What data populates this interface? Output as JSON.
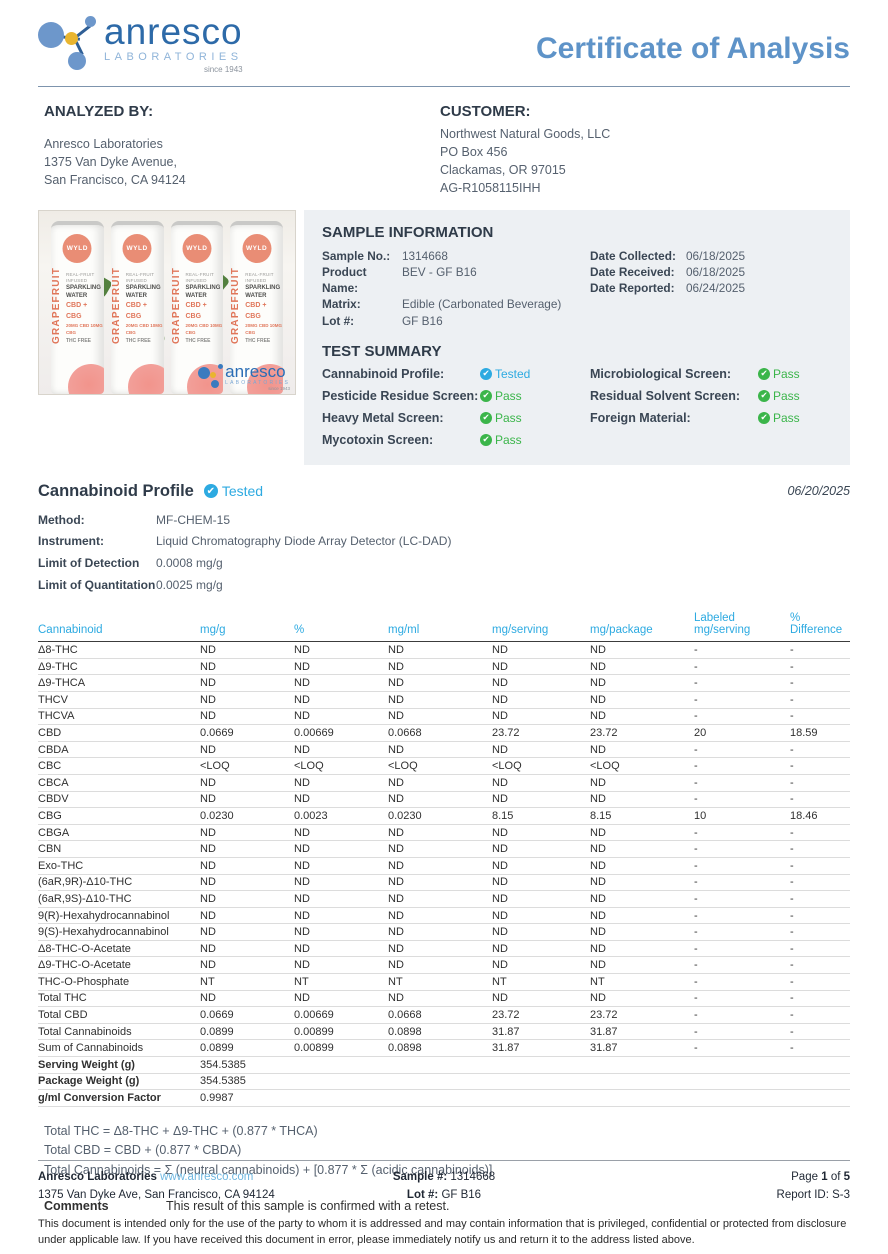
{
  "page_title": "Certificate of Analysis",
  "logo": {
    "name": "anresco",
    "sub": "LABORATORIES",
    "since": "since 1943"
  },
  "analyzed_by": {
    "heading": "ANALYZED BY:",
    "lines": [
      "Anresco Laboratories",
      "1375 Van Dyke Avenue,",
      "San Francisco, CA 94124"
    ]
  },
  "customer": {
    "heading": "CUSTOMER:",
    "lines": [
      "Northwest Natural Goods, LLC",
      "PO Box 456",
      "Clackamas, OR 97015",
      "AG-R1058115IHH"
    ]
  },
  "product_photo": {
    "brand": "WYLD",
    "fruit": "GRAPEFRUIT",
    "line_tiny": "REAL-FRUIT INFUSED",
    "line1": "SPARKLING",
    "line2": "WATER",
    "cbd_line": "CBD + CBG",
    "dose_line": "20MG CBD 10MG CBG",
    "thc_line": "THC FREE",
    "watermark": "anresco",
    "watermark_sub": "LABORATORIES",
    "watermark_since": "since 1943"
  },
  "sample_info": {
    "heading": "SAMPLE INFORMATION",
    "fields": [
      {
        "label": "Sample No.:",
        "value": "1314668"
      },
      {
        "label": "Product Name:",
        "value": "BEV - GF B16"
      },
      {
        "label": "Matrix:",
        "value": "Edible (Carbonated Beverage)"
      },
      {
        "label": "Lot #:",
        "value": "GF B16"
      }
    ],
    "dates": [
      {
        "label": "Date Collected:",
        "value": "06/18/2025"
      },
      {
        "label": "Date Received:",
        "value": "06/18/2025"
      },
      {
        "label": "Date Reported:",
        "value": "06/24/2025"
      }
    ]
  },
  "test_summary": {
    "heading": "TEST SUMMARY",
    "left": [
      {
        "label": "Cannabinoid Profile:",
        "status": "Tested",
        "kind": "tested"
      },
      {
        "label": "Pesticide Residue Screen:",
        "status": "Pass",
        "kind": "pass"
      },
      {
        "label": "Heavy Metal Screen:",
        "status": "Pass",
        "kind": "pass"
      },
      {
        "label": "Mycotoxin Screen:",
        "status": "Pass",
        "kind": "pass"
      }
    ],
    "right": [
      {
        "label": "Microbiological Screen:",
        "status": "Pass",
        "kind": "pass"
      },
      {
        "label": "Residual Solvent Screen:",
        "status": "Pass",
        "kind": "pass"
      },
      {
        "label": "Foreign Material:",
        "status": "Pass",
        "kind": "pass"
      }
    ]
  },
  "cannabinoid_profile": {
    "heading": "Cannabinoid Profile",
    "status": "Tested",
    "date": "06/20/2025",
    "method_rows": [
      {
        "label": "Method:",
        "value": "MF-CHEM-15"
      },
      {
        "label": "Instrument:",
        "value": "Liquid Chromatography Diode Array Detector (LC-DAD)"
      },
      {
        "label": "Limit of Detection",
        "value": "0.0008 mg/g"
      },
      {
        "label": "Limit of Quantitation",
        "value": "0.0025 mg/g"
      }
    ]
  },
  "table": {
    "headers": [
      "Cannabinoid",
      "mg/g",
      "%",
      "mg/ml",
      "mg/serving",
      "mg/package",
      "Labeled mg/serving",
      "% Difference"
    ],
    "rows": [
      {
        "name": "Δ8-THC",
        "values": [
          "ND",
          "ND",
          "ND",
          "ND",
          "ND",
          "-",
          "-"
        ]
      },
      {
        "name": "Δ9-THC",
        "values": [
          "ND",
          "ND",
          "ND",
          "ND",
          "ND",
          "-",
          "-"
        ]
      },
      {
        "name": "Δ9-THCA",
        "values": [
          "ND",
          "ND",
          "ND",
          "ND",
          "ND",
          "-",
          "-"
        ]
      },
      {
        "name": "THCV",
        "values": [
          "ND",
          "ND",
          "ND",
          "ND",
          "ND",
          "-",
          "-"
        ]
      },
      {
        "name": "THCVA",
        "values": [
          "ND",
          "ND",
          "ND",
          "ND",
          "ND",
          "-",
          "-"
        ]
      },
      {
        "name": "CBD",
        "values": [
          "0.0669",
          "0.00669",
          "0.0668",
          "23.72",
          "23.72",
          "20",
          "18.59"
        ]
      },
      {
        "name": "CBDA",
        "values": [
          "ND",
          "ND",
          "ND",
          "ND",
          "ND",
          "-",
          "-"
        ]
      },
      {
        "name": "CBC",
        "values": [
          "<LOQ",
          "<LOQ",
          "<LOQ",
          "<LOQ",
          "<LOQ",
          "-",
          "-"
        ]
      },
      {
        "name": "CBCA",
        "values": [
          "ND",
          "ND",
          "ND",
          "ND",
          "ND",
          "-",
          "-"
        ]
      },
      {
        "name": "CBDV",
        "values": [
          "ND",
          "ND",
          "ND",
          "ND",
          "ND",
          "-",
          "-"
        ]
      },
      {
        "name": "CBG",
        "values": [
          "0.0230",
          "0.0023",
          "0.0230",
          "8.15",
          "8.15",
          "10",
          "18.46"
        ]
      },
      {
        "name": "CBGA",
        "values": [
          "ND",
          "ND",
          "ND",
          "ND",
          "ND",
          "-",
          "-"
        ]
      },
      {
        "name": "CBN",
        "values": [
          "ND",
          "ND",
          "ND",
          "ND",
          "ND",
          "-",
          "-"
        ]
      },
      {
        "name": "Exo-THC",
        "values": [
          "ND",
          "ND",
          "ND",
          "ND",
          "ND",
          "-",
          "-"
        ]
      },
      {
        "name": "(6aR,9R)-Δ10-THC",
        "values": [
          "ND",
          "ND",
          "ND",
          "ND",
          "ND",
          "-",
          "-"
        ]
      },
      {
        "name": "(6aR,9S)-Δ10-THC",
        "values": [
          "ND",
          "ND",
          "ND",
          "ND",
          "ND",
          "-",
          "-"
        ]
      },
      {
        "name": "9(R)-Hexahydrocannabinol",
        "values": [
          "ND",
          "ND",
          "ND",
          "ND",
          "ND",
          "-",
          "-"
        ]
      },
      {
        "name": "9(S)-Hexahydrocannabinol",
        "values": [
          "ND",
          "ND",
          "ND",
          "ND",
          "ND",
          "-",
          "-"
        ]
      },
      {
        "name": "Δ8-THC-O-Acetate",
        "values": [
          "ND",
          "ND",
          "ND",
          "ND",
          "ND",
          "-",
          "-"
        ]
      },
      {
        "name": "Δ9-THC-O-Acetate",
        "values": [
          "ND",
          "ND",
          "ND",
          "ND",
          "ND",
          "-",
          "-"
        ]
      },
      {
        "name": "THC-O-Phosphate",
        "values": [
          "NT",
          "NT",
          "NT",
          "NT",
          "NT",
          "-",
          "-"
        ]
      },
      {
        "name": "Total THC",
        "values": [
          "ND",
          "ND",
          "ND",
          "ND",
          "ND",
          "-",
          "-"
        ]
      },
      {
        "name": "Total CBD",
        "values": [
          "0.0669",
          "0.00669",
          "0.0668",
          "23.72",
          "23.72",
          "-",
          "-"
        ]
      },
      {
        "name": "Total Cannabinoids",
        "values": [
          "0.0899",
          "0.00899",
          "0.0898",
          "31.87",
          "31.87",
          "-",
          "-"
        ]
      },
      {
        "name": "Sum of Cannabinoids",
        "values": [
          "0.0899",
          "0.00899",
          "0.0898",
          "31.87",
          "31.87",
          "-",
          "-"
        ]
      },
      {
        "name": "Serving Weight (g)",
        "values": [
          "354.5385",
          "",
          "",
          "",
          "",
          "",
          ""
        ],
        "bold": true
      },
      {
        "name": "Package Weight (g)",
        "values": [
          "354.5385",
          "",
          "",
          "",
          "",
          "",
          ""
        ],
        "bold": true
      },
      {
        "name": "g/ml Conversion Factor",
        "values": [
          "0.9987",
          "",
          "",
          "",
          "",
          "",
          ""
        ],
        "bold": true
      }
    ]
  },
  "formulas": [
    "Total THC = Δ8-THC + Δ9-THC + (0.877 * THCA)",
    "Total CBD = CBD + (0.877 * CBDA)",
    "Total Cannabinoids = Σ (neutral cannabinoids) + [0.877 * Σ (acidic cannabinoids)]"
  ],
  "comments": {
    "label": "Comments",
    "text": "This result of this sample is confirmed with a retest."
  },
  "footer": {
    "company": "Anresco Laboratories",
    "website": "www.anresco.com",
    "address": "1375 Van Dyke Ave, San Francisco, CA 94124",
    "sample_label": "Sample #:",
    "sample_value": "1314668",
    "lot_label": "Lot #:",
    "lot_value": "GF B16",
    "page_prefix": "Page",
    "page_number": "1",
    "page_of": "of",
    "page_total": "5",
    "report_id": "Report ID: S-3",
    "disclaimer": "This document is intended only for the use of the party to whom it is addressed and may contain information that is privileged, confidential or protected from disclosure under applicable law. If you have received this document in error, please immediately notify us and return it to the address listed above."
  }
}
